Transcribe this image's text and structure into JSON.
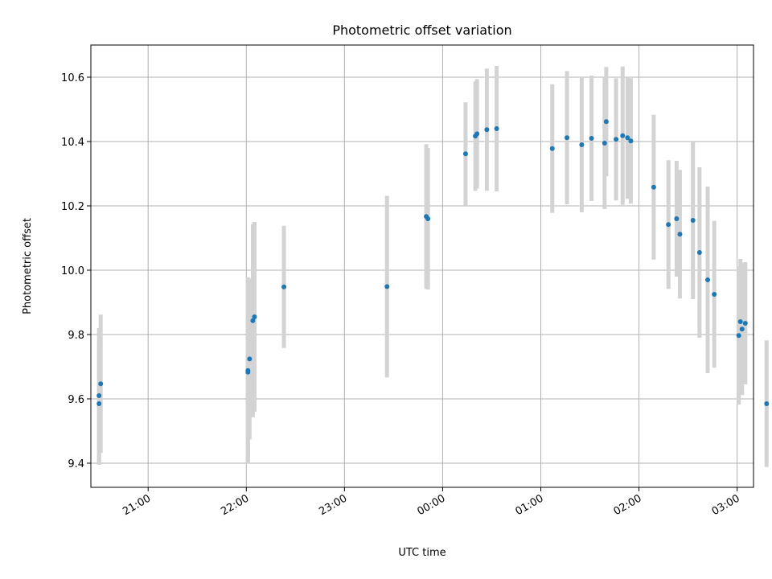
{
  "chart_data": {
    "type": "scatter",
    "title": "Photometric offset variation",
    "xlabel": "UTC time",
    "ylabel": "Photometric offset",
    "x_unit": "UTC time of night, times after midnight written past 24:00",
    "xlim": [
      "20:25",
      "27:10"
    ],
    "ylim": [
      9.325,
      10.7
    ],
    "x_ticks": [
      "21:00",
      "22:00",
      "23:00",
      "00:00",
      "01:00",
      "02:00",
      "03:00"
    ],
    "y_ticks": [
      "9.4",
      "9.6",
      "9.8",
      "10.0",
      "10.2",
      "10.4",
      "10.6"
    ],
    "grid": true,
    "marker_color": "#1f77b4",
    "errorbar_color": "#d3d3d3",
    "points": [
      {
        "x": "20:30",
        "y": 9.585,
        "err": 0.19
      },
      {
        "x": "20:30",
        "y": 9.61,
        "err": 0.21
      },
      {
        "x": "20:31",
        "y": 9.647,
        "err": 0.215
      },
      {
        "x": "22:01",
        "y": 9.683,
        "err": 0.28
      },
      {
        "x": "22:01",
        "y": 9.688,
        "err": 0.29
      },
      {
        "x": "22:02",
        "y": 9.724,
        "err": 0.25
      },
      {
        "x": "22:04",
        "y": 9.843,
        "err": 0.3
      },
      {
        "x": "22:05",
        "y": 9.855,
        "err": 0.295
      },
      {
        "x": "22:23",
        "y": 9.948,
        "err": 0.19
      },
      {
        "x": "23:26",
        "y": 9.949,
        "err": 0.282
      },
      {
        "x": "23:50",
        "y": 10.167,
        "err": 0.225
      },
      {
        "x": "23:51",
        "y": 10.16,
        "err": 0.22
      },
      {
        "x": "24:14",
        "y": 10.362,
        "err": 0.16
      },
      {
        "x": "24:20",
        "y": 10.417,
        "err": 0.17
      },
      {
        "x": "24:21",
        "y": 10.424,
        "err": 0.17
      },
      {
        "x": "24:27",
        "y": 10.437,
        "err": 0.19
      },
      {
        "x": "24:33",
        "y": 10.44,
        "err": 0.195
      },
      {
        "x": "25:07",
        "y": 10.378,
        "err": 0.2
      },
      {
        "x": "25:16",
        "y": 10.412,
        "err": 0.207
      },
      {
        "x": "25:25",
        "y": 10.39,
        "err": 0.21
      },
      {
        "x": "25:31",
        "y": 10.41,
        "err": 0.195
      },
      {
        "x": "25:39",
        "y": 10.395,
        "err": 0.205
      },
      {
        "x": "25:40",
        "y": 10.462,
        "err": 0.17
      },
      {
        "x": "25:46",
        "y": 10.407,
        "err": 0.19
      },
      {
        "x": "25:50",
        "y": 10.418,
        "err": 0.215
      },
      {
        "x": "25:53",
        "y": 10.412,
        "err": 0.19
      },
      {
        "x": "25:55",
        "y": 10.402,
        "err": 0.195
      },
      {
        "x": "26:09",
        "y": 10.258,
        "err": 0.225
      },
      {
        "x": "26:18",
        "y": 10.142,
        "err": 0.2
      },
      {
        "x": "26:23",
        "y": 10.16,
        "err": 0.18
      },
      {
        "x": "26:25",
        "y": 10.112,
        "err": 0.2
      },
      {
        "x": "26:33",
        "y": 10.155,
        "err": 0.245
      },
      {
        "x": "26:37",
        "y": 10.055,
        "err": 0.265
      },
      {
        "x": "26:42",
        "y": 9.97,
        "err": 0.29
      },
      {
        "x": "26:46",
        "y": 9.925,
        "err": 0.228
      },
      {
        "x": "27:01",
        "y": 9.797,
        "err": 0.215
      },
      {
        "x": "27:02",
        "y": 9.84,
        "err": 0.195
      },
      {
        "x": "27:03",
        "y": 9.817,
        "err": 0.205
      },
      {
        "x": "27:05",
        "y": 9.835,
        "err": 0.19
      },
      {
        "x": "27:18",
        "y": 9.585,
        "err": 0.197
      }
    ]
  }
}
